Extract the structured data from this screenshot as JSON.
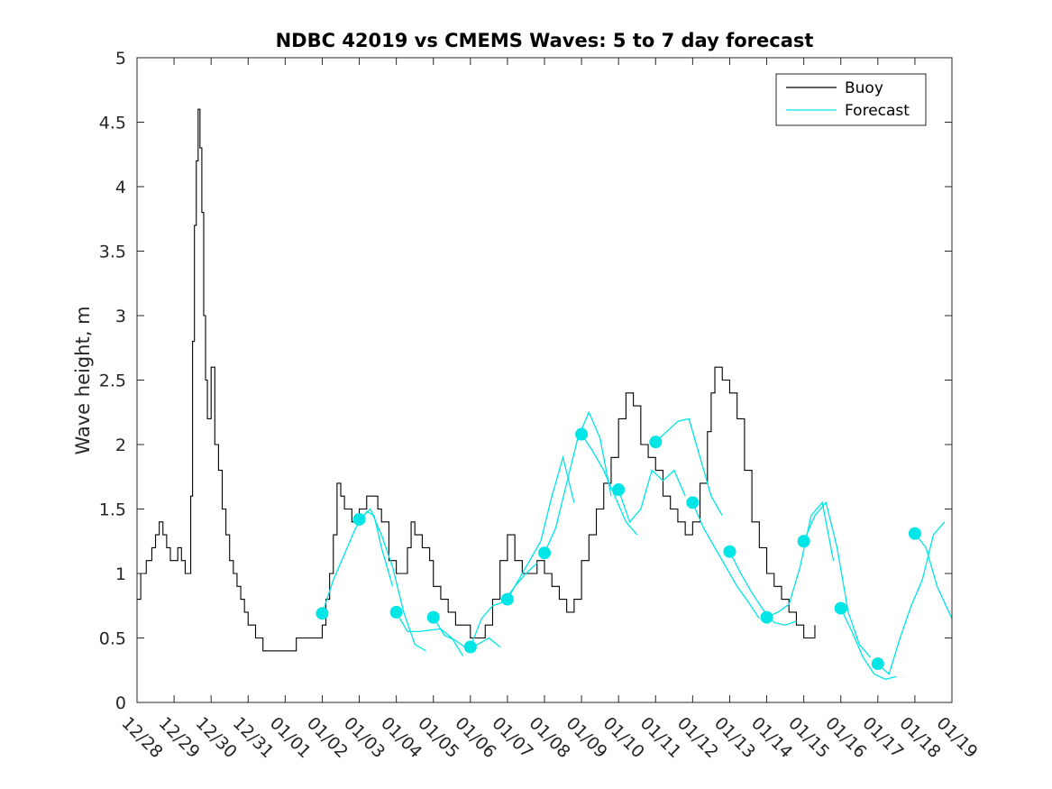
{
  "chart_data": {
    "type": "line",
    "title": "NDBC 42019 vs CMEMS Waves: 5 to 7 day forecast",
    "xlabel": "",
    "ylabel": "Wave height, m",
    "ylim": [
      0,
      5
    ],
    "xlim": [
      "12/28",
      "01/19"
    ],
    "yticks": [
      "0",
      "0.5",
      "1",
      "1.5",
      "2",
      "2.5",
      "3",
      "3.5",
      "4",
      "4.5",
      "5"
    ],
    "xticks": [
      "12/28",
      "12/29",
      "12/30",
      "12/31",
      "01/01",
      "01/02",
      "01/03",
      "01/04",
      "01/05",
      "01/06",
      "01/07",
      "01/08",
      "01/09",
      "01/10",
      "01/11",
      "01/12",
      "01/13",
      "01/14",
      "01/15",
      "01/16",
      "01/17",
      "01/18",
      "01/19"
    ],
    "grid": false,
    "legend": {
      "position": "top-right",
      "entries": [
        {
          "label": "Buoy",
          "color": "#000000"
        },
        {
          "label": "Forecast",
          "color": "#00e5e5"
        }
      ]
    },
    "series": [
      {
        "name": "Buoy",
        "color": "#000000",
        "style": "stepped-line",
        "x": [
          0,
          0.1,
          0.25,
          0.4,
          0.5,
          0.6,
          0.7,
          0.8,
          0.9,
          1.0,
          1.1,
          1.2,
          1.3,
          1.4,
          1.45,
          1.5,
          1.55,
          1.6,
          1.65,
          1.7,
          1.75,
          1.8,
          1.85,
          1.9,
          2.0,
          2.1,
          2.2,
          2.3,
          2.4,
          2.5,
          2.6,
          2.7,
          2.8,
          2.9,
          3.0,
          3.2,
          3.4,
          3.6,
          3.8,
          4.0,
          4.2,
          4.3,
          4.4,
          4.6,
          4.8,
          5.0,
          5.1,
          5.2,
          5.3,
          5.4,
          5.5,
          5.6,
          5.7,
          5.8,
          6.0,
          6.2,
          6.4,
          6.5,
          6.6,
          6.8,
          7.0,
          7.2,
          7.3,
          7.4,
          7.5,
          7.7,
          7.9,
          8.0,
          8.2,
          8.4,
          8.6,
          8.8,
          9.0,
          9.2,
          9.4,
          9.6,
          9.8,
          10.0,
          10.2,
          10.4,
          10.6,
          10.8,
          11.0,
          11.2,
          11.4,
          11.6,
          11.8,
          12.0,
          12.2,
          12.4,
          12.6,
          12.8,
          13.0,
          13.2,
          13.4,
          13.6,
          13.8,
          14.0,
          14.2,
          14.4,
          14.6,
          14.8,
          15.0,
          15.2,
          15.4,
          15.5,
          15.6,
          15.8,
          16.0,
          16.2,
          16.4,
          16.6,
          16.8,
          17.0,
          17.2,
          17.4,
          17.6,
          17.8,
          18.0,
          18.2,
          18.3
        ],
        "values": [
          0.8,
          1.0,
          1.1,
          1.2,
          1.3,
          1.4,
          1.3,
          1.2,
          1.1,
          1.1,
          1.2,
          1.1,
          1.0,
          1.0,
          1.6,
          2.8,
          3.7,
          4.2,
          4.6,
          4.3,
          3.8,
          3.0,
          2.5,
          2.2,
          2.6,
          2.0,
          1.8,
          1.5,
          1.3,
          1.1,
          1.0,
          0.9,
          0.8,
          0.7,
          0.6,
          0.5,
          0.4,
          0.4,
          0.4,
          0.4,
          0.4,
          0.5,
          0.5,
          0.5,
          0.5,
          0.6,
          0.8,
          1.0,
          1.3,
          1.7,
          1.6,
          1.5,
          1.5,
          1.4,
          1.5,
          1.6,
          1.6,
          1.5,
          1.4,
          1.1,
          1.0,
          1.0,
          1.2,
          1.4,
          1.3,
          1.2,
          1.1,
          0.9,
          0.8,
          0.7,
          0.6,
          0.6,
          0.5,
          0.5,
          0.6,
          0.8,
          1.1,
          1.3,
          1.1,
          1.0,
          1.0,
          1.1,
          1.0,
          0.9,
          0.8,
          0.7,
          0.8,
          1.1,
          1.3,
          1.5,
          1.7,
          1.9,
          2.2,
          2.4,
          2.3,
          2.0,
          1.9,
          1.8,
          1.6,
          1.5,
          1.4,
          1.3,
          1.4,
          1.7,
          2.1,
          2.4,
          2.6,
          2.5,
          2.4,
          2.2,
          1.8,
          1.4,
          1.2,
          1.0,
          0.9,
          0.8,
          0.7,
          0.6,
          0.5,
          0.5,
          0.6
        ]
      },
      {
        "name": "Forecast",
        "color": "#00e5e5",
        "style": "overlapping-runs",
        "runs": [
          {
            "x": [
              5.0,
              5.3,
              5.6,
              5.9,
              6.2,
              6.4,
              6.6,
              6.9
            ],
            "values": [
              0.69,
              0.95,
              1.15,
              1.35,
              1.48,
              1.45,
              1.2,
              0.9
            ]
          },
          {
            "x": [
              6.0,
              6.3,
              6.6,
              6.9,
              7.2,
              7.5,
              7.8
            ],
            "values": [
              1.42,
              1.5,
              1.3,
              1.05,
              0.7,
              0.45,
              0.4
            ]
          },
          {
            "x": [
              7.0,
              7.3,
              7.6,
              7.9,
              8.2,
              8.5,
              8.8
            ],
            "values": [
              0.7,
              0.55,
              0.55,
              0.56,
              0.57,
              0.5,
              0.36
            ]
          },
          {
            "x": [
              8.0,
              8.3,
              8.6,
              8.9,
              9.2,
              9.5,
              9.8
            ],
            "values": [
              0.66,
              0.52,
              0.48,
              0.42,
              0.45,
              0.5,
              0.43
            ]
          },
          {
            "x": [
              9.0,
              9.3,
              9.6,
              9.9,
              10.2,
              10.5,
              10.8
            ],
            "values": [
              0.43,
              0.65,
              0.75,
              0.78,
              0.9,
              1.0,
              1.08
            ]
          },
          {
            "x": [
              10.0,
              10.3,
              10.6,
              10.9,
              11.2,
              11.5,
              11.8
            ],
            "values": [
              0.8,
              0.95,
              1.1,
              1.25,
              1.6,
              1.9,
              1.55
            ]
          },
          {
            "x": [
              11.0,
              11.3,
              11.6,
              11.9,
              12.2,
              12.5,
              12.8
            ],
            "values": [
              1.16,
              1.35,
              1.7,
              2.05,
              2.25,
              2.05,
              1.6
            ]
          },
          {
            "x": [
              12.0,
              12.3,
              12.6,
              12.9,
              13.2,
              13.5
            ],
            "values": [
              2.08,
              1.95,
              1.8,
              1.6,
              1.4,
              1.3
            ]
          },
          {
            "x": [
              13.0,
              13.3,
              13.6,
              13.9,
              14.2,
              14.5,
              14.8
            ],
            "values": [
              1.65,
              1.4,
              1.5,
              1.8,
              1.72,
              1.8,
              1.6
            ]
          },
          {
            "x": [
              14.0,
              14.3,
              14.6,
              14.9,
              15.2,
              15.5,
              15.8
            ],
            "values": [
              2.02,
              2.1,
              2.18,
              2.2,
              1.9,
              1.6,
              1.45
            ]
          },
          {
            "x": [
              15.0,
              15.3,
              15.6,
              15.9,
              16.2,
              16.5,
              16.8
            ],
            "values": [
              1.55,
              1.35,
              1.2,
              1.05,
              0.9,
              0.78,
              0.65
            ]
          },
          {
            "x": [
              16.0,
              16.3,
              16.6,
              16.9,
              17.2,
              17.5,
              17.8
            ],
            "values": [
              1.17,
              1.0,
              0.85,
              0.72,
              0.62,
              0.6,
              0.63
            ]
          },
          {
            "x": [
              17.0,
              17.3,
              17.6,
              17.9,
              18.2,
              18.5,
              18.8
            ],
            "values": [
              0.66,
              0.7,
              0.76,
              1.05,
              1.45,
              1.55,
              1.1
            ]
          },
          {
            "x": [
              18.0,
              18.3,
              18.6,
              18.9,
              19.2,
              19.5,
              19.8
            ],
            "values": [
              1.25,
              1.45,
              1.55,
              1.2,
              0.7,
              0.45,
              0.35
            ]
          },
          {
            "x": [
              19.0,
              19.3,
              19.6,
              19.9,
              20.2,
              20.5
            ],
            "values": [
              0.73,
              0.55,
              0.35,
              0.22,
              0.18,
              0.2
            ]
          },
          {
            "x": [
              20.0,
              20.3,
              20.6,
              20.9,
              21.2,
              21.5,
              21.8
            ],
            "values": [
              0.3,
              0.22,
              0.5,
              0.75,
              0.95,
              1.3,
              1.4
            ]
          },
          {
            "x": [
              21.0,
              21.3,
              21.6,
              22.0
            ],
            "values": [
              1.31,
              1.2,
              0.9,
              0.65
            ]
          }
        ],
        "markers": {
          "x": [
            5.0,
            6.0,
            7.0,
            8.0,
            9.0,
            10.0,
            11.0,
            12.0,
            13.0,
            14.0,
            15.0,
            16.0,
            17.0,
            18.0,
            19.0,
            20.0,
            21.0
          ],
          "values": [
            0.69,
            1.42,
            0.7,
            0.66,
            0.43,
            0.8,
            1.16,
            2.08,
            1.65,
            2.02,
            1.55,
            1.17,
            0.66,
            1.25,
            0.73,
            0.3,
            1.31
          ]
        }
      }
    ]
  }
}
